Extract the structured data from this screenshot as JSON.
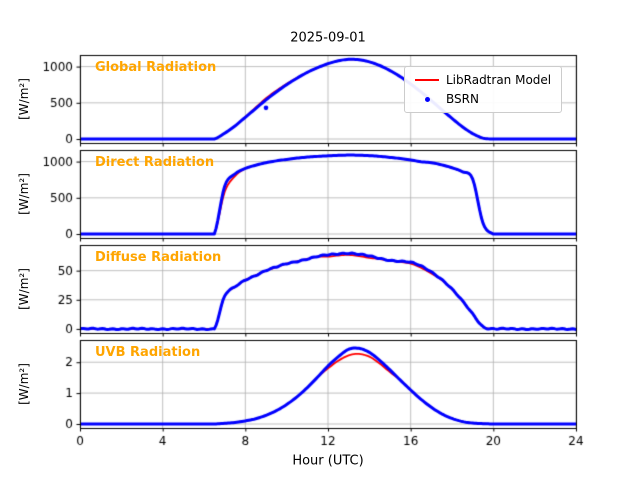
{
  "figure": {
    "title": "2025-09-01",
    "xlabel": "Hour (UTC)",
    "background_color": "#ffffff",
    "grid_color": "#b0b0b0",
    "label_accent_color": "#ffa500"
  },
  "legend": {
    "items": [
      {
        "label": "LibRadtran Model",
        "color": "#ff0000",
        "marker": "line"
      },
      {
        "label": "BSRN",
        "color": "#0000ff",
        "marker": "dot"
      }
    ]
  },
  "chart_data": {
    "type": "line",
    "title": "2025-09-01",
    "xlabel": "Hour (UTC)",
    "xlim": [
      0,
      24
    ],
    "x_ticks": [
      0,
      4,
      8,
      12,
      16,
      20,
      24
    ],
    "grid": true,
    "legend_position": "upper right of first subplot",
    "series_meta": {
      "model": {
        "name": "LibRadtran Model",
        "color": "#ff0000",
        "linewidth": 1.8
      },
      "bsrn": {
        "name": "BSRN",
        "color": "#0000ff",
        "linewidth": 3
      }
    },
    "x": [
      0,
      0.5,
      1,
      1.5,
      2,
      2.5,
      3,
      3.5,
      4,
      4.5,
      5,
      5.5,
      6,
      6.5,
      7,
      7.5,
      8,
      8.5,
      9,
      9.5,
      10,
      10.5,
      11,
      11.5,
      12,
      12.5,
      13,
      13.5,
      14,
      14.5,
      15,
      15.5,
      16,
      16.5,
      17,
      17.5,
      18,
      18.5,
      19,
      19.5,
      20,
      20.5,
      21,
      21.5,
      22,
      22.5,
      23,
      23.5,
      24
    ],
    "subplots": [
      {
        "name": "Global Radiation",
        "ylabel": "[W/m²]",
        "yticks": [
          0,
          500,
          1000
        ],
        "ylim": [
          -55,
          1160
        ],
        "noise": 0,
        "model": [
          0,
          0,
          0,
          0,
          0,
          0,
          0,
          0,
          0,
          0,
          0,
          0,
          0,
          0,
          80,
          180,
          305,
          435,
          562,
          668,
          762,
          845,
          920,
          985,
          1040,
          1080,
          1100,
          1095,
          1065,
          1015,
          945,
          860,
          760,
          650,
          530,
          405,
          285,
          170,
          75,
          12,
          0,
          0,
          0,
          0,
          0,
          0,
          0,
          0,
          0
        ],
        "bsrn": [
          0,
          0,
          0,
          0,
          0,
          0,
          0,
          0,
          0,
          0,
          0,
          0,
          0,
          0,
          80,
          180,
          300,
          420,
          540,
          650,
          750,
          840,
          920,
          985,
          1040,
          1080,
          1100,
          1095,
          1065,
          1015,
          945,
          860,
          760,
          650,
          530,
          405,
          285,
          170,
          75,
          12,
          0,
          0,
          0,
          0,
          0,
          0,
          0,
          0,
          0
        ],
        "outliers": [
          [
            9.0,
            430
          ]
        ]
      },
      {
        "name": "Direct Radiation",
        "ylabel": "[W/m²]",
        "yticks": [
          0,
          500,
          1000
        ],
        "ylim": [
          -55,
          1160
        ],
        "noise": 0,
        "model": [
          0,
          0,
          0,
          0,
          0,
          0,
          0,
          0,
          0,
          0,
          0,
          0,
          0,
          0,
          580,
          800,
          905,
          950,
          985,
          1010,
          1030,
          1048,
          1062,
          1072,
          1080,
          1086,
          1090,
          1088,
          1082,
          1072,
          1058,
          1042,
          1022,
          998,
          985,
          955,
          915,
          860,
          760,
          150,
          0,
          0,
          0,
          0,
          0,
          0,
          0,
          0,
          0
        ],
        "bsrn": [
          0,
          0,
          0,
          0,
          0,
          0,
          0,
          0,
          0,
          0,
          0,
          0,
          0,
          0,
          660,
          830,
          905,
          950,
          985,
          1010,
          1030,
          1048,
          1062,
          1072,
          1080,
          1086,
          1090,
          1088,
          1082,
          1072,
          1058,
          1042,
          1022,
          998,
          985,
          955,
          915,
          860,
          760,
          150,
          0,
          0,
          0,
          0,
          0,
          0,
          0,
          0,
          0
        ],
        "outliers": []
      },
      {
        "name": "Diffuse Radiation",
        "ylabel": "[W/m²]",
        "yticks": [
          0,
          25,
          50
        ],
        "ylim": [
          -3.5,
          72
        ],
        "noise": 0.6,
        "model": [
          0,
          0,
          0,
          0,
          0,
          0,
          0,
          0,
          0,
          0,
          0,
          0,
          0,
          0,
          28,
          36,
          42,
          46,
          50,
          53,
          56,
          58,
          60,
          62,
          62,
          63,
          63.5,
          62.5,
          61,
          60,
          58.5,
          57.5,
          56,
          52.5,
          47.5,
          42,
          34,
          24,
          13,
          2,
          0,
          0,
          0,
          0,
          0,
          0,
          0,
          0,
          0
        ],
        "bsrn": [
          0,
          0,
          0,
          0,
          0,
          0,
          0,
          0,
          0,
          0,
          0,
          0,
          0,
          0,
          28,
          36,
          42,
          46,
          50,
          53,
          56,
          58,
          60,
          62,
          63.5,
          64.5,
          65,
          64,
          62.5,
          60.5,
          59,
          58,
          57,
          54,
          49,
          42.5,
          34,
          24,
          13,
          2,
          0,
          0,
          0,
          0,
          0,
          0,
          0,
          0,
          0
        ],
        "outliers": []
      },
      {
        "name": "UVB Radiation",
        "ylabel": "[W/m²]",
        "yticks": [
          0,
          1,
          2
        ],
        "ylim": [
          -0.13,
          2.72
        ],
        "noise": 0,
        "model": [
          0,
          0,
          0,
          0,
          0,
          0,
          0,
          0,
          0,
          0,
          0,
          0,
          0,
          0,
          0.02,
          0.05,
          0.1,
          0.17,
          0.28,
          0.43,
          0.63,
          0.88,
          1.18,
          1.52,
          1.8,
          2.05,
          2.22,
          2.27,
          2.18,
          1.96,
          1.68,
          1.42,
          1.1,
          0.8,
          0.54,
          0.33,
          0.18,
          0.08,
          0.03,
          0.01,
          0,
          0,
          0,
          0,
          0,
          0,
          0,
          0,
          0
        ],
        "bsrn": [
          0,
          0,
          0,
          0,
          0,
          0,
          0,
          0,
          0,
          0,
          0,
          0,
          0,
          0,
          0.02,
          0.05,
          0.1,
          0.17,
          0.28,
          0.43,
          0.63,
          0.88,
          1.18,
          1.52,
          1.88,
          2.18,
          2.42,
          2.45,
          2.32,
          2.06,
          1.75,
          1.42,
          1.1,
          0.8,
          0.54,
          0.33,
          0.18,
          0.08,
          0.03,
          0.01,
          0,
          0,
          0,
          0,
          0,
          0,
          0,
          0,
          0
        ],
        "outliers": []
      }
    ]
  }
}
